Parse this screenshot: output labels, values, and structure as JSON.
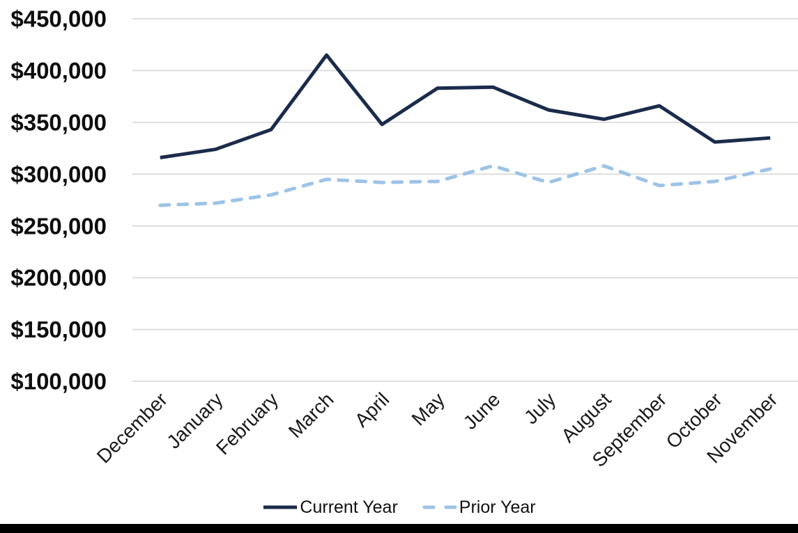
{
  "page": {
    "background": "#ffffff",
    "footer_bar_color": "#000000"
  },
  "chart_data": {
    "type": "line",
    "title": "",
    "xlabel": "",
    "ylabel": "",
    "categories": [
      "December",
      "January",
      "February",
      "March",
      "April",
      "May",
      "June",
      "July",
      "August",
      "September",
      "October",
      "November"
    ],
    "series": [
      {
        "name": "Current Year",
        "style": "solid",
        "color": "#1b2b4b",
        "values": [
          316000,
          324000,
          343000,
          415000,
          348000,
          383000,
          384000,
          362000,
          353000,
          366000,
          331000,
          335000
        ]
      },
      {
        "name": "Prior Year",
        "style": "dashed",
        "color": "#9dc3e6",
        "values": [
          270000,
          272000,
          280000,
          295000,
          292000,
          293000,
          308000,
          292000,
          308000,
          289000,
          293000,
          305000
        ]
      }
    ],
    "y_axis": {
      "min": 100000,
      "max": 450000,
      "tick_step": 50000,
      "tick_labels": [
        "$450,000",
        "$400,000",
        "$350,000",
        "$300,000",
        "$250,000",
        "$200,000",
        "$150,000",
        "$100,000"
      ],
      "format": "$#,##0"
    },
    "x_axis": {
      "label_rotation_deg": 45
    },
    "grid": {
      "horizontal": true,
      "vertical": false,
      "color": "#dedede"
    },
    "legend_position": "bottom"
  }
}
